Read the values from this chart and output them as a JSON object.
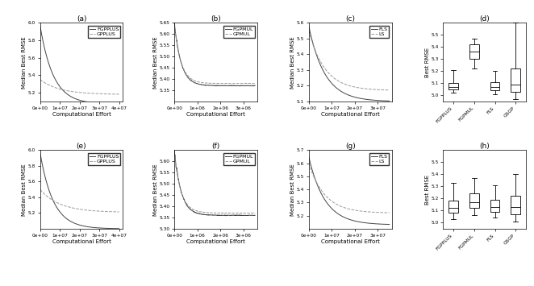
{
  "fig_width": 6.62,
  "fig_height": 3.55,
  "plots": {
    "a": {
      "title": "(a)",
      "xlabel": "Computational Effort",
      "ylabel": "Median Best RMSE",
      "xlim": [
        0,
        42000000.0
      ],
      "ylim": [
        5.1,
        6.0
      ],
      "yticks": [
        5.2,
        5.4,
        5.6,
        5.8,
        6.0
      ],
      "xticks": [
        0,
        10000000.0,
        20000000.0,
        30000000.0,
        40000000.0
      ],
      "legend": [
        "FGPPLUS",
        "GPPLUS"
      ],
      "curve1": {
        "y_start": 5.97,
        "y_end": 5.07,
        "decay": 6.0
      },
      "curve2": {
        "y_start": 5.35,
        "y_end": 5.18,
        "decay": 4.0
      }
    },
    "b": {
      "title": "(b)",
      "xlabel": "Computational Effort",
      "ylabel": "Median Best RMSE",
      "xlim": [
        0,
        3600000.0
      ],
      "ylim": [
        5.3,
        5.65
      ],
      "yticks": [
        5.35,
        5.4,
        5.45,
        5.5,
        5.55,
        5.6,
        5.65
      ],
      "xticks": [
        0,
        1000000.0,
        2000000.0,
        3000000.0
      ],
      "legend": [
        "FGPMUL",
        "GPMUL"
      ],
      "curve1": {
        "y_start": 5.65,
        "y_end": 5.37,
        "decay": 12.0
      },
      "curve2": {
        "y_start": 5.64,
        "y_end": 5.38,
        "decay": 12.0
      }
    },
    "c": {
      "title": "(c)",
      "xlabel": "Computational Effort",
      "ylabel": "Median Best RMSE",
      "xlim": [
        0,
        36000000.0
      ],
      "ylim": [
        5.1,
        5.6
      ],
      "yticks": [
        5.1,
        5.2,
        5.3,
        5.4,
        5.5,
        5.6
      ],
      "xticks": [
        0,
        10000000.0,
        20000000.0,
        30000000.0
      ],
      "legend": [
        "FLS",
        "LS"
      ],
      "curve1": {
        "y_start": 5.58,
        "y_end": 5.1,
        "decay": 5.0
      },
      "curve2": {
        "y_start": 5.55,
        "y_end": 5.17,
        "decay": 5.0
      }
    },
    "d": {
      "title": "(d)",
      "ylabel": "Best RMSE",
      "ylim": [
        4.95,
        5.6
      ],
      "yticks": [
        5.0,
        5.1,
        5.2,
        5.3,
        5.4,
        5.5
      ],
      "categories": [
        "FGPPLUS",
        "FGPMUL",
        "FLS",
        "GSGP"
      ],
      "box_data": [
        {
          "med": 5.07,
          "q1": 5.05,
          "q3": 5.1,
          "whislo": 5.02,
          "whishi": 5.21
        },
        {
          "med": 5.36,
          "q1": 5.3,
          "q3": 5.42,
          "whislo": 5.22,
          "whishi": 5.47
        },
        {
          "med": 5.07,
          "q1": 5.04,
          "q3": 5.11,
          "whislo": 5.01,
          "whishi": 5.2
        },
        {
          "med": 5.09,
          "q1": 5.03,
          "q3": 5.22,
          "whislo": 4.97,
          "whishi": 5.6
        }
      ]
    },
    "e": {
      "title": "(e)",
      "xlabel": "Computational Effort",
      "ylabel": "Median Best RMSE",
      "xlim": [
        0,
        42000000.0
      ],
      "ylim": [
        5.0,
        6.0
      ],
      "yticks": [
        5.2,
        5.4,
        5.6,
        5.8,
        6.0
      ],
      "xticks": [
        0,
        10000000.0,
        20000000.0,
        30000000.0,
        40000000.0
      ],
      "legend": [
        "FGPPLUS",
        "GPPLUS"
      ],
      "curve1": {
        "y_start": 5.97,
        "y_end": 5.0,
        "decay": 6.0
      },
      "curve2": {
        "y_start": 5.5,
        "y_end": 5.21,
        "decay": 4.0
      }
    },
    "f": {
      "title": "(f)",
      "xlabel": "Computational Effort",
      "ylabel": "Median Best RMSE",
      "xlim": [
        0,
        3600000.0
      ],
      "ylim": [
        5.3,
        5.65
      ],
      "yticks": [
        5.3,
        5.35,
        5.4,
        5.45,
        5.5,
        5.55,
        5.6
      ],
      "xticks": [
        0,
        1000000.0,
        2000000.0,
        3000000.0
      ],
      "legend": [
        "FGPMUL",
        "GPMUL"
      ],
      "curve1": {
        "y_start": 5.65,
        "y_end": 5.36,
        "decay": 12.0
      },
      "curve2": {
        "y_start": 5.63,
        "y_end": 5.37,
        "decay": 12.0
      }
    },
    "g": {
      "title": "(g)",
      "xlabel": "Computational Effort",
      "ylabel": "Median Best RMSE",
      "xlim": [
        0,
        36000000.0
      ],
      "ylim": [
        5.1,
        5.7
      ],
      "yticks": [
        5.2,
        5.3,
        5.4,
        5.5,
        5.6,
        5.7
      ],
      "xticks": [
        0,
        10000000.0,
        20000000.0,
        30000000.0
      ],
      "legend": [
        "FLS",
        "LS"
      ],
      "curve1": {
        "y_start": 5.65,
        "y_end": 5.13,
        "decay": 5.0
      },
      "curve2": {
        "y_start": 5.6,
        "y_end": 5.22,
        "decay": 5.0
      }
    },
    "h": {
      "title": "(h)",
      "ylabel": "Best RMSE",
      "ylim": [
        4.95,
        5.6
      ],
      "yticks": [
        5.0,
        5.1,
        5.2,
        5.3,
        5.4,
        5.5
      ],
      "categories": [
        "FGPPLUS",
        "FGPMUL",
        "FLS",
        "GSGP"
      ],
      "box_data": [
        {
          "med": 5.12,
          "q1": 5.08,
          "q3": 5.18,
          "whislo": 5.03,
          "whishi": 5.33
        },
        {
          "med": 5.17,
          "q1": 5.12,
          "q3": 5.24,
          "whislo": 5.06,
          "whishi": 5.37
        },
        {
          "med": 5.13,
          "q1": 5.09,
          "q3": 5.19,
          "whislo": 5.04,
          "whishi": 5.31
        },
        {
          "med": 5.13,
          "q1": 5.07,
          "q3": 5.22,
          "whislo": 5.01,
          "whishi": 5.4
        }
      ]
    }
  },
  "dark_color": "#444444",
  "light_color": "#999999",
  "font_size": 5.0,
  "tick_size": 4.2,
  "title_size": 6.5,
  "legend_size": 4.5,
  "lw": 0.7
}
